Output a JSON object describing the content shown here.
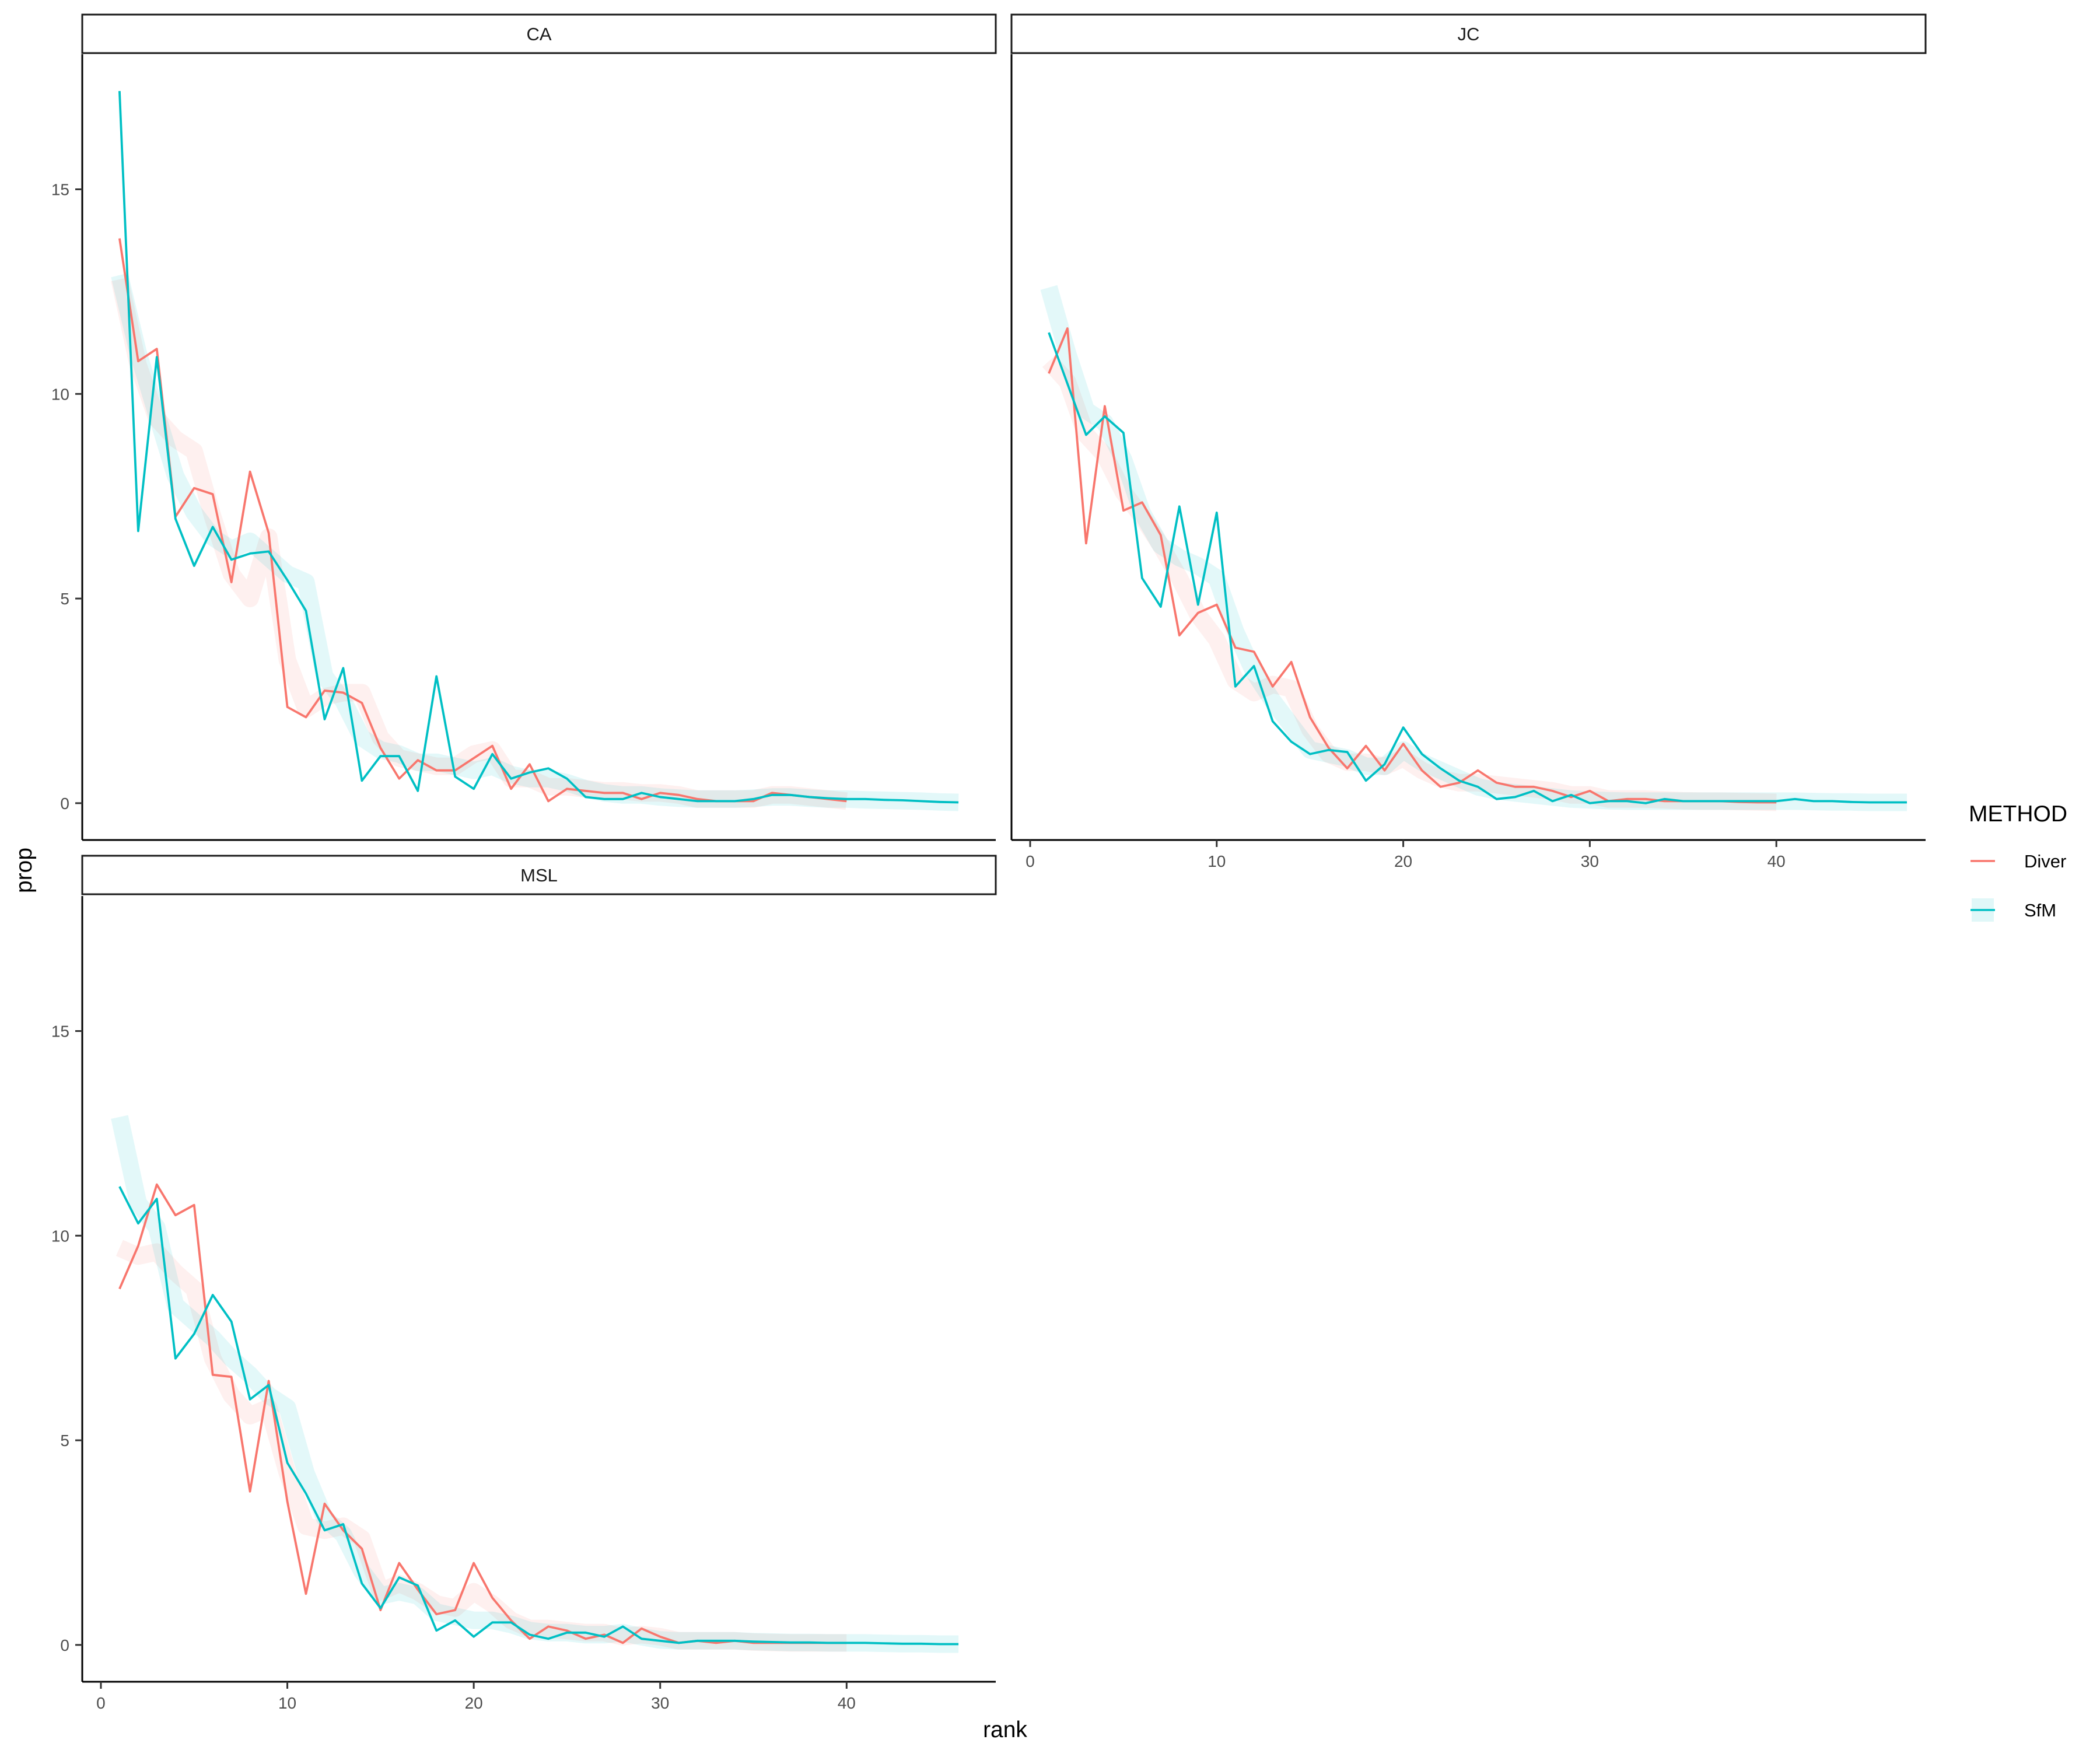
{
  "colors": {
    "Diver": "#F8766D",
    "SfM": "#00BFC4"
  },
  "x_label": "rank",
  "y_label": "prop",
  "legend": {
    "title": "METHOD",
    "items": [
      "Diver",
      "SfM"
    ]
  },
  "chart_data": [
    {
      "type": "line",
      "facet": "CA",
      "xlabel": "rank",
      "ylabel": "prop",
      "xlim": [
        -1,
        48
      ],
      "ylim": [
        -0.9,
        18.3
      ],
      "y_ticks": [
        0,
        5,
        10,
        15
      ],
      "x_ticks": [],
      "grid": false,
      "series": [
        {
          "name": "Diver",
          "x": [
            1,
            2,
            3,
            4,
            5,
            6,
            7,
            8,
            9,
            10,
            11,
            12,
            13,
            14,
            15,
            16,
            17,
            18,
            19,
            20,
            21,
            22,
            23,
            24,
            25,
            26,
            27,
            28,
            29,
            30,
            31,
            32,
            33,
            34,
            35,
            36,
            37,
            38,
            39,
            40
          ],
          "values": [
            13.8,
            10.8,
            11.1,
            7.0,
            7.7,
            7.55,
            5.4,
            8.1,
            6.6,
            2.35,
            2.1,
            2.75,
            2.7,
            2.45,
            1.35,
            0.6,
            1.05,
            0.8,
            0.8,
            1.1,
            1.4,
            0.35,
            0.95,
            0.05,
            0.35,
            0.3,
            0.25,
            0.25,
            0.1,
            0.25,
            0.2,
            0.1,
            0.05,
            0.05,
            0.05,
            0.25,
            0.2,
            0.15,
            0.1,
            0.05
          ],
          "trend": [
            12.8,
            10.7,
            9.4,
            8.9,
            8.6,
            7.0,
            5.6,
            5.0,
            6.5,
            3.5,
            2.3,
            2.6,
            2.7,
            2.7,
            1.6,
            1.1,
            1.0,
            0.9,
            0.9,
            1.2,
            1.3,
            0.6,
            0.6,
            0.4,
            0.4,
            0.35,
            0.3,
            0.3,
            0.25,
            0.25,
            0.2,
            0.1,
            0.1,
            0.1,
            0.1,
            0.2,
            0.2,
            0.15,
            0.1,
            0.05
          ]
        },
        {
          "name": "SfM",
          "x": [
            1,
            2,
            3,
            4,
            5,
            6,
            7,
            8,
            9,
            10,
            11,
            12,
            13,
            14,
            15,
            16,
            17,
            18,
            19,
            20,
            21,
            22,
            23,
            24,
            25,
            26,
            27,
            28,
            29,
            30,
            31,
            32,
            33,
            34,
            35,
            36,
            37,
            38,
            39,
            40,
            41,
            42,
            43,
            44,
            45,
            46
          ],
          "values": [
            17.4,
            6.65,
            10.9,
            6.95,
            5.8,
            6.75,
            5.95,
            6.1,
            6.15,
            5.45,
            4.7,
            2.05,
            3.3,
            0.55,
            1.15,
            1.15,
            0.3,
            3.1,
            0.65,
            0.35,
            1.2,
            0.6,
            0.75,
            0.85,
            0.6,
            0.15,
            0.1,
            0.1,
            0.25,
            0.15,
            0.1,
            0.05,
            0.05,
            0.05,
            0.1,
            0.2,
            0.2,
            0.15,
            0.12,
            0.1,
            0.1,
            0.08,
            0.07,
            0.05,
            0.03,
            0.02
          ],
          "trend": [
            12.9,
            11.0,
            9.5,
            8.0,
            7.1,
            6.5,
            6.2,
            6.4,
            6.0,
            5.6,
            5.4,
            3.1,
            2.5,
            1.6,
            1.3,
            1.2,
            1.0,
            1.0,
            0.9,
            0.8,
            0.9,
            0.7,
            0.6,
            0.6,
            0.5,
            0.35,
            0.25,
            0.2,
            0.2,
            0.15,
            0.12,
            0.1,
            0.1,
            0.1,
            0.12,
            0.15,
            0.15,
            0.12,
            0.1,
            0.1,
            0.08,
            0.07,
            0.06,
            0.05,
            0.03,
            0.02
          ]
        }
      ]
    },
    {
      "type": "line",
      "facet": "JC",
      "xlabel": "rank",
      "ylabel": "prop",
      "xlim": [
        -1,
        48
      ],
      "ylim": [
        -0.9,
        18.3
      ],
      "y_ticks": [],
      "x_ticks": [
        0,
        10,
        20,
        30,
        40
      ],
      "grid": false,
      "series": [
        {
          "name": "Diver",
          "x": [
            1,
            2,
            3,
            4,
            5,
            6,
            7,
            8,
            9,
            10,
            11,
            12,
            13,
            14,
            15,
            16,
            17,
            18,
            19,
            20,
            21,
            22,
            23,
            24,
            25,
            26,
            27,
            28,
            29,
            30,
            31,
            32,
            33,
            34,
            35,
            36,
            37,
            38,
            39,
            40
          ],
          "values": [
            10.5,
            11.6,
            6.35,
            9.7,
            7.15,
            7.35,
            6.55,
            4.1,
            4.65,
            4.85,
            3.8,
            3.7,
            2.85,
            3.45,
            2.1,
            1.35,
            0.85,
            1.4,
            0.8,
            1.45,
            0.8,
            0.4,
            0.5,
            0.8,
            0.5,
            0.4,
            0.4,
            0.3,
            0.15,
            0.3,
            0.05,
            0.1,
            0.1,
            0.05,
            0.05,
            0.05,
            0.05,
            0.03,
            0.02,
            0.02
          ],
          "trend": [
            10.8,
            10.3,
            9.0,
            8.5,
            7.6,
            7.0,
            6.3,
            5.5,
            4.6,
            4.0,
            3.0,
            2.7,
            2.9,
            2.8,
            1.8,
            1.2,
            1.0,
            1.0,
            0.9,
            1.1,
            0.8,
            0.6,
            0.5,
            0.5,
            0.45,
            0.4,
            0.35,
            0.3,
            0.2,
            0.2,
            0.1,
            0.1,
            0.1,
            0.08,
            0.06,
            0.05,
            0.05,
            0.04,
            0.03,
            0.02
          ]
        },
        {
          "name": "SfM",
          "x": [
            1,
            2,
            3,
            4,
            5,
            6,
            7,
            8,
            9,
            10,
            11,
            12,
            13,
            14,
            15,
            16,
            17,
            18,
            19,
            20,
            21,
            22,
            23,
            24,
            25,
            26,
            27,
            28,
            29,
            30,
            31,
            32,
            33,
            34,
            35,
            36,
            37,
            38,
            39,
            40,
            41,
            42,
            43,
            44,
            45,
            46,
            47
          ],
          "values": [
            11.5,
            10.25,
            9.0,
            9.45,
            9.05,
            5.5,
            4.8,
            7.25,
            4.85,
            7.1,
            2.85,
            3.35,
            2.0,
            1.5,
            1.2,
            1.3,
            1.25,
            0.55,
            0.95,
            1.85,
            1.2,
            0.85,
            0.55,
            0.4,
            0.1,
            0.15,
            0.3,
            0.05,
            0.2,
            0.0,
            0.05,
            0.05,
            0.0,
            0.1,
            0.05,
            0.05,
            0.05,
            0.05,
            0.05,
            0.05,
            0.1,
            0.05,
            0.05,
            0.03,
            0.02,
            0.02,
            0.02
          ],
          "trend": [
            12.6,
            11.0,
            9.6,
            9.3,
            8.4,
            7.1,
            6.3,
            6.0,
            5.8,
            5.5,
            4.2,
            3.2,
            2.5,
            1.9,
            1.3,
            1.2,
            1.1,
            0.9,
            0.9,
            1.3,
            1.0,
            0.8,
            0.6,
            0.4,
            0.3,
            0.25,
            0.2,
            0.15,
            0.1,
            0.08,
            0.06,
            0.05,
            0.05,
            0.05,
            0.05,
            0.05,
            0.05,
            0.05,
            0.05,
            0.05,
            0.05,
            0.04,
            0.03,
            0.03,
            0.02,
            0.02,
            0.02
          ]
        }
      ]
    },
    {
      "type": "line",
      "facet": "MSL",
      "xlabel": "rank",
      "ylabel": "prop",
      "xlim": [
        -1,
        48
      ],
      "ylim": [
        -0.9,
        18.3
      ],
      "y_ticks": [
        0,
        5,
        10,
        15
      ],
      "x_ticks": [
        0,
        10,
        20,
        30,
        40
      ],
      "grid": false,
      "series": [
        {
          "name": "Diver",
          "x": [
            1,
            2,
            3,
            4,
            5,
            6,
            7,
            8,
            9,
            10,
            11,
            12,
            13,
            14,
            15,
            16,
            17,
            18,
            19,
            20,
            21,
            22,
            23,
            24,
            25,
            26,
            27,
            28,
            29,
            30,
            31,
            32,
            33,
            34,
            35,
            36,
            37,
            38,
            39,
            40
          ],
          "values": [
            8.7,
            9.75,
            11.25,
            10.5,
            10.75,
            6.6,
            6.55,
            3.75,
            6.45,
            3.5,
            1.25,
            3.45,
            2.8,
            2.35,
            0.85,
            2.0,
            1.35,
            0.75,
            0.85,
            2.0,
            1.15,
            0.6,
            0.15,
            0.45,
            0.35,
            0.15,
            0.25,
            0.05,
            0.4,
            0.2,
            0.05,
            0.1,
            0.05,
            0.1,
            0.05,
            0.05,
            0.05,
            0.05,
            0.05,
            0.05
          ],
          "trend": [
            9.7,
            9.5,
            9.6,
            9.1,
            8.7,
            7.0,
            6.1,
            5.6,
            5.8,
            4.2,
            2.9,
            2.8,
            2.9,
            2.6,
            1.3,
            1.5,
            1.3,
            1.0,
            0.9,
            1.3,
            1.0,
            0.6,
            0.4,
            0.4,
            0.35,
            0.3,
            0.3,
            0.2,
            0.25,
            0.2,
            0.1,
            0.1,
            0.1,
            0.1,
            0.07,
            0.06,
            0.05,
            0.05,
            0.05,
            0.05
          ]
        },
        {
          "name": "SfM",
          "x": [
            1,
            2,
            3,
            4,
            5,
            6,
            7,
            8,
            9,
            10,
            11,
            12,
            13,
            14,
            15,
            16,
            17,
            18,
            19,
            20,
            21,
            22,
            23,
            24,
            25,
            26,
            27,
            28,
            29,
            30,
            31,
            32,
            33,
            34,
            35,
            36,
            37,
            38,
            39,
            40,
            41,
            42,
            43,
            44,
            45,
            46
          ],
          "values": [
            11.2,
            10.3,
            10.9,
            7.0,
            7.6,
            8.55,
            7.9,
            6.0,
            6.35,
            4.45,
            3.7,
            2.8,
            2.95,
            1.5,
            0.9,
            1.65,
            1.45,
            0.35,
            0.6,
            0.2,
            0.55,
            0.55,
            0.25,
            0.15,
            0.3,
            0.3,
            0.2,
            0.45,
            0.15,
            0.1,
            0.05,
            0.1,
            0.1,
            0.1,
            0.08,
            0.07,
            0.06,
            0.06,
            0.05,
            0.05,
            0.05,
            0.04,
            0.03,
            0.03,
            0.02,
            0.02
          ],
          "trend": [
            12.9,
            10.8,
            10.2,
            8.3,
            7.9,
            7.5,
            7.0,
            6.6,
            6.1,
            5.8,
            4.2,
            3.1,
            2.7,
            1.8,
            1.2,
            1.3,
            1.2,
            0.8,
            0.7,
            0.6,
            0.6,
            0.5,
            0.35,
            0.3,
            0.3,
            0.25,
            0.25,
            0.3,
            0.2,
            0.12,
            0.1,
            0.1,
            0.1,
            0.1,
            0.08,
            0.07,
            0.06,
            0.06,
            0.05,
            0.05,
            0.05,
            0.04,
            0.03,
            0.03,
            0.02,
            0.02
          ]
        }
      ]
    }
  ]
}
